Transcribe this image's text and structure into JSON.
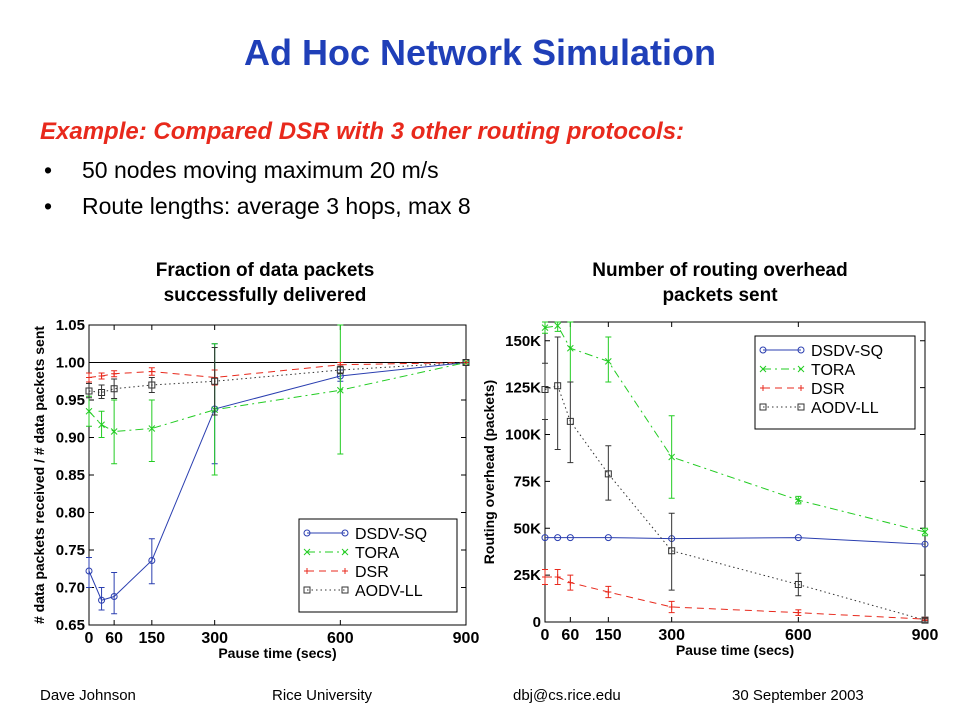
{
  "slide": {
    "title": "Ad Hoc Network Simulation",
    "subtitle": "Example: Compared DSR with 3 other routing protocols:",
    "bullets": [
      "50 nodes moving maximum 20 m/s",
      "Route lengths: average 3 hops, max 8"
    ],
    "bullet_symbol": "•"
  },
  "footer": {
    "author": "Dave Johnson",
    "org": "Rice University",
    "email": "dbj@cs.rice.edu",
    "date": "30 September  2003"
  },
  "colors": {
    "title": "#1f3fb8",
    "subtitle": "#e8291c"
  },
  "chart_data": [
    {
      "type": "line",
      "title": "Fraction of data packets successfully delivered",
      "title_lines": [
        "Fraction of data packets",
        "successfully delivered"
      ],
      "xlabel": "Pause time (secs)",
      "ylabel": "# data packets received / # data packets sent",
      "xlim": [
        0,
        900
      ],
      "ylim": [
        0.65,
        1.05
      ],
      "x_ticks": [
        0,
        60,
        150,
        300,
        600,
        900
      ],
      "x_tick_labels": [
        "0",
        "60",
        "150",
        "300",
        "600",
        "900"
      ],
      "y_ticks": [
        0.65,
        0.7,
        0.75,
        0.8,
        0.85,
        0.9,
        0.95,
        1.0,
        1.05
      ],
      "y_tick_labels": [
        "0.65",
        "0.70",
        "0.75",
        "0.80",
        "0.85",
        "0.90",
        "0.95",
        "1.00",
        "1.05"
      ],
      "reference_line": 1.0,
      "grid": false,
      "legend_position": "bottom-right",
      "x": [
        0,
        30,
        60,
        150,
        300,
        600,
        900
      ],
      "series": [
        {
          "name": "DSDV-SQ",
          "color": "#2b3fb0",
          "dash": "solid",
          "marker": "circle",
          "values": [
            0.722,
            0.683,
            0.688,
            0.736,
            0.938,
            0.982,
            1.0
          ],
          "err_low": [
            0.7,
            0.67,
            0.665,
            0.705,
            0.865,
            0.975,
            1.0
          ],
          "err_high": [
            0.74,
            0.7,
            0.72,
            0.765,
            1.025,
            0.99,
            1.0
          ]
        },
        {
          "name": "TORA",
          "color": "#22cc22",
          "dash": "dashdot",
          "marker": "x",
          "values": [
            0.935,
            0.917,
            0.908,
            0.912,
            0.937,
            0.963,
            1.0
          ],
          "err_low": [
            0.915,
            0.9,
            0.865,
            0.868,
            0.85,
            0.878,
            1.0
          ],
          "err_high": [
            0.955,
            0.935,
            0.95,
            0.95,
            1.025,
            1.05,
            1.0
          ]
        },
        {
          "name": "DSR",
          "color": "#e8291c",
          "dash": "dashed",
          "marker": "plus",
          "values": [
            0.98,
            0.982,
            0.985,
            0.988,
            0.98,
            0.997,
            1.0
          ],
          "err_low": [
            0.974,
            0.978,
            0.981,
            0.983,
            0.97,
            0.994,
            1.0
          ],
          "err_high": [
            0.986,
            0.986,
            0.989,
            0.993,
            0.99,
            1.0,
            1.0
          ]
        },
        {
          "name": "AODV-LL",
          "color": "#333333",
          "dash": "dotted",
          "marker": "square",
          "values": [
            0.962,
            0.96,
            0.965,
            0.97,
            0.975,
            0.99,
            1.0
          ],
          "err_low": [
            0.953,
            0.952,
            0.952,
            0.96,
            0.93,
            0.985,
            1.0
          ],
          "err_high": [
            0.972,
            0.97,
            0.978,
            0.98,
            1.02,
            0.995,
            1.0
          ]
        }
      ]
    },
    {
      "type": "line",
      "title": "Number of routing overhead packets sent",
      "title_lines": [
        "Number of routing overhead",
        "packets sent"
      ],
      "xlabel": "Pause time (secs)",
      "ylabel": "Routing overhead (packets)",
      "xlim": [
        0,
        900
      ],
      "ylim": [
        0,
        160000
      ],
      "x_ticks": [
        0,
        60,
        150,
        300,
        600,
        900
      ],
      "x_tick_labels": [
        "0",
        "60",
        "150",
        "300",
        "600",
        "900"
      ],
      "y_ticks": [
        0,
        25000,
        50000,
        75000,
        100000,
        125000,
        150000
      ],
      "y_tick_labels": [
        "0",
        "25K",
        "50K",
        "75K",
        "100K",
        "125K",
        "150K"
      ],
      "grid": false,
      "legend_position": "top-right",
      "x": [
        0,
        30,
        60,
        150,
        300,
        600,
        900
      ],
      "series": [
        {
          "name": "DSDV-SQ",
          "color": "#2b3fb0",
          "dash": "solid",
          "marker": "circle",
          "values": [
            45000,
            45000,
            45000,
            45000,
            44500,
            45000,
            41500
          ],
          "err_low": [
            45000,
            45000,
            45000,
            45000,
            44500,
            45000,
            41500
          ],
          "err_high": [
            45000,
            45000,
            45000,
            45000,
            44500,
            45000,
            41500
          ]
        },
        {
          "name": "TORA",
          "color": "#22cc22",
          "dash": "dashdot",
          "marker": "x",
          "values": [
            157000,
            158000,
            146000,
            139000,
            88000,
            65000,
            48000
          ],
          "err_low": [
            154000,
            155000,
            128000,
            128000,
            66000,
            63000,
            46000
          ],
          "err_high": [
            160000,
            160000,
            160000,
            152000,
            110000,
            67000,
            50000
          ]
        },
        {
          "name": "DSR",
          "color": "#e8291c",
          "dash": "dashed",
          "marker": "plus",
          "values": [
            24000,
            24000,
            21000,
            16000,
            8000,
            5000,
            1500
          ],
          "err_low": [
            20000,
            20000,
            17000,
            13000,
            5000,
            3500,
            800
          ],
          "err_high": [
            28000,
            28000,
            25000,
            19000,
            11000,
            6500,
            2200
          ]
        },
        {
          "name": "AODV-LL",
          "color": "#333333",
          "dash": "dotted",
          "marker": "square",
          "values": [
            124000,
            126000,
            107000,
            79000,
            38000,
            20000,
            1000
          ],
          "err_low": [
            108000,
            92000,
            85000,
            65000,
            17000,
            14000,
            0
          ],
          "err_high": [
            138000,
            152000,
            128000,
            94000,
            58000,
            26000,
            2000
          ]
        }
      ]
    }
  ]
}
